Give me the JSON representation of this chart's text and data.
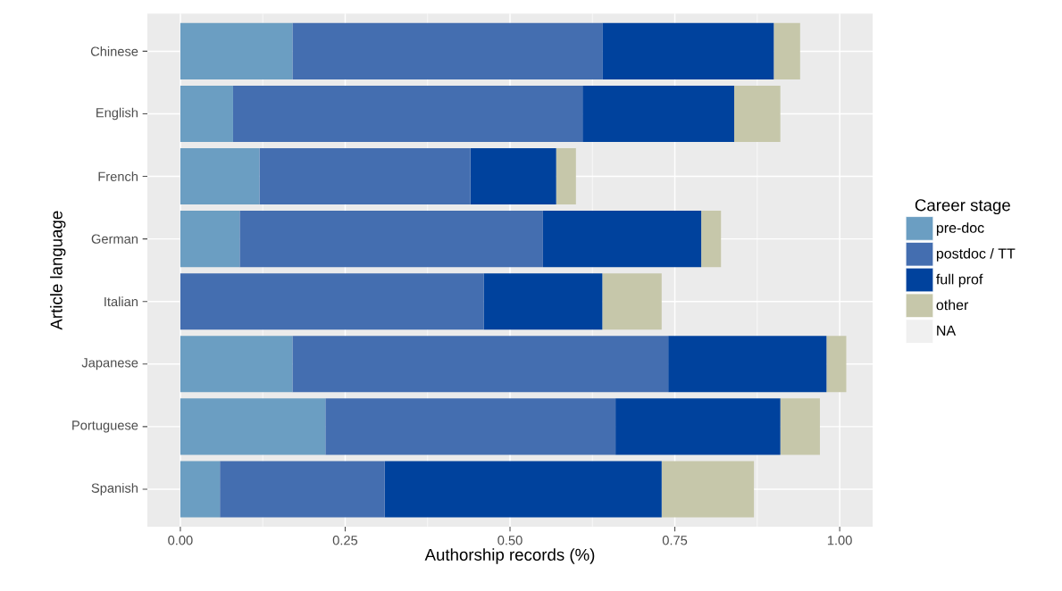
{
  "chart_data": {
    "type": "bar",
    "orientation": "horizontal",
    "stacked": true,
    "categories": [
      "Chinese",
      "English",
      "French",
      "German",
      "Italian",
      "Japanese",
      "Portuguese",
      "Spanish"
    ],
    "series": [
      {
        "name": "pre-doc",
        "color": "#6b9ec2",
        "values": [
          0.17,
          0.08,
          0.12,
          0.09,
          0,
          0.17,
          0.22,
          0.06
        ]
      },
      {
        "name": "postdoc / TT",
        "color": "#446eb0",
        "values": [
          0.47,
          0.53,
          0.32,
          0.46,
          0.46,
          0.57,
          0.44,
          0.25
        ]
      },
      {
        "name": "full prof",
        "color": "#00429d",
        "values": [
          0.26,
          0.23,
          0.13,
          0.24,
          0.18,
          0.24,
          0.25,
          0.42
        ]
      },
      {
        "name": "other",
        "color": "#c6c7aa",
        "values": [
          0.04,
          0.07,
          0.03,
          0.03,
          0.09,
          0.03,
          0.06,
          0.14
        ]
      },
      {
        "name": "NA",
        "color": "#f0f0f0",
        "values": [
          null,
          null,
          null,
          null,
          null,
          null,
          null,
          null
        ]
      }
    ],
    "xlabel": "Authorship records (%)",
    "ylabel": "Article language",
    "legend_title": "Career stage",
    "xlim": [
      -0.05,
      1.05
    ],
    "xticks": [
      {
        "value": 0,
        "label": "0.00"
      },
      {
        "value": 0.25,
        "label": "0.25"
      },
      {
        "value": 0.5,
        "label": "0.50"
      },
      {
        "value": 0.75,
        "label": "0.75"
      },
      {
        "value": 1,
        "label": "1.00"
      }
    ],
    "grid": true,
    "legend": "right"
  }
}
